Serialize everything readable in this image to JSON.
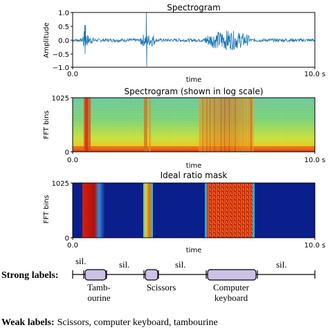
{
  "panels": {
    "waveform": {
      "title": "Spectrogram",
      "ylabel": "Amplitude",
      "xlabel": "time",
      "yticks": [
        "1.0",
        "0.5",
        "0.0",
        "−0.5",
        "−1.0"
      ],
      "xticks": [
        "0.0",
        "10.0 s"
      ]
    },
    "spectrogram": {
      "title": "Spectrogram (shown in log scale)",
      "ylabel": "FFT bins",
      "xlabel": "time",
      "yticks": [
        "1025",
        "0"
      ],
      "xticks": [
        "0.0",
        "10.0 s"
      ]
    },
    "mask": {
      "title": "Ideal ratio mask",
      "ylabel": "FFT bins",
      "xlabel": "time",
      "yticks": [
        "1025",
        "0"
      ],
      "xticks": [
        "0.0",
        "10.0 s"
      ]
    }
  },
  "strong": {
    "label": "Strong labels:",
    "silence_labels": [
      "sil.",
      "sil.",
      "sil.",
      "sil."
    ],
    "events": [
      "Tamb-\nourine",
      "Scissors",
      "Computer\nkeyboard"
    ]
  },
  "weak": {
    "label": "Weak labels:",
    "text": "Scissors, computer keyboard, tambourine"
  },
  "colors": {
    "signal": "#1f77b4",
    "event_box": "#ccc1e6"
  }
}
